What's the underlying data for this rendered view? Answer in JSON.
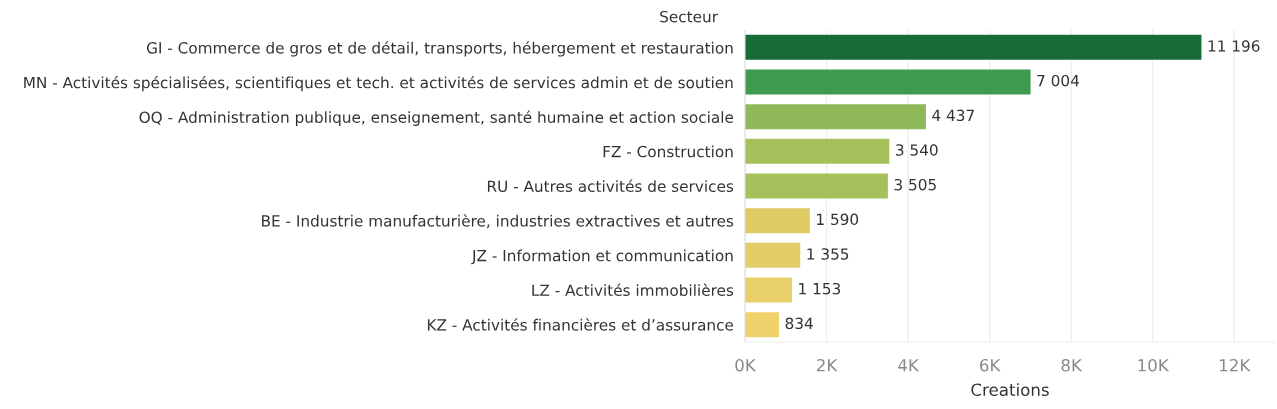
{
  "chart_data": {
    "type": "bar",
    "orientation": "horizontal",
    "ylabel": "Secteur",
    "xlabel": "Creations",
    "categories": [
      "GI - Commerce de gros et de détail, transports, hébergement et restauration",
      "MN - Activités spécialisées, scientifiques et tech. et activités de services admin et de soutien",
      "OQ - Administration publique, enseignement, santé humaine et action sociale",
      "FZ - Construction",
      "RU - Autres activités de services",
      "BE - Industrie manufacturière, industries extractives et autres",
      "JZ - Information et communication",
      "LZ - Activités immobilières",
      "KZ - Activités financières et d’assurance"
    ],
    "values": [
      11196,
      7004,
      4437,
      3540,
      3505,
      1590,
      1355,
      1153,
      834
    ],
    "value_labels": [
      "11 196",
      "7 004",
      "4 437",
      "3 540",
      "3 505",
      "1 590",
      "1 355",
      "1 153",
      "834"
    ],
    "colors": [
      "#176b37",
      "#3d9a4f",
      "#8fb85a",
      "#a6c15b",
      "#a6c15b",
      "#dfcb63",
      "#e3cd66",
      "#e9cf69",
      "#efd26c"
    ],
    "xlim": [
      0,
      13000
    ],
    "xticks": [
      {
        "value": 0,
        "label": "0K"
      },
      {
        "value": 2000,
        "label": "2K"
      },
      {
        "value": 4000,
        "label": "4K"
      },
      {
        "value": 6000,
        "label": "6K"
      },
      {
        "value": 8000,
        "label": "8K"
      },
      {
        "value": 10000,
        "label": "10K"
      },
      {
        "value": 12000,
        "label": "12K"
      }
    ],
    "grid": "x"
  }
}
